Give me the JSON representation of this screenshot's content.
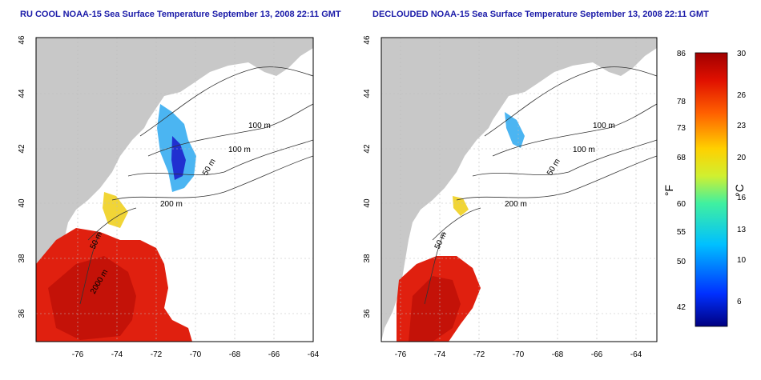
{
  "maps": [
    {
      "title": "RU COOL NOAA-15 Sea Surface Temperature September 13, 2008 22:11 GMT",
      "x_ticks": [
        "-76",
        "-74",
        "-72",
        "-70",
        "-68",
        "-66",
        "-64"
      ],
      "y_ticks": [
        "36",
        "38",
        "40",
        "42",
        "44",
        "46"
      ],
      "contours": [
        "100 m",
        "100 m",
        "50 m",
        "200 m",
        "50 m",
        "2000 m"
      ]
    },
    {
      "title": "DECLOUDED NOAA-15 Sea Surface Temperature September 13, 2008 22:11 GMT",
      "x_ticks": [
        "-76",
        "-74",
        "-72",
        "-70",
        "-68",
        "-66",
        "-64"
      ],
      "y_ticks": [
        "36",
        "38",
        "40",
        "42",
        "44",
        "46"
      ],
      "contours": [
        "100 m",
        "100 m",
        "50 m",
        "200 m",
        "50 m"
      ]
    }
  ],
  "colorbar": {
    "f_label": "°F",
    "c_label": "°C",
    "f_ticks": [
      "86",
      "78",
      "73",
      "68",
      "60",
      "55",
      "50",
      "42"
    ],
    "c_ticks": [
      "30",
      "26",
      "23",
      "20",
      "16",
      "13",
      "10",
      "6"
    ]
  },
  "colors": {
    "land": "#c8c8c8",
    "sea_warm": "#e0200f",
    "title": "#1a1aa8"
  }
}
